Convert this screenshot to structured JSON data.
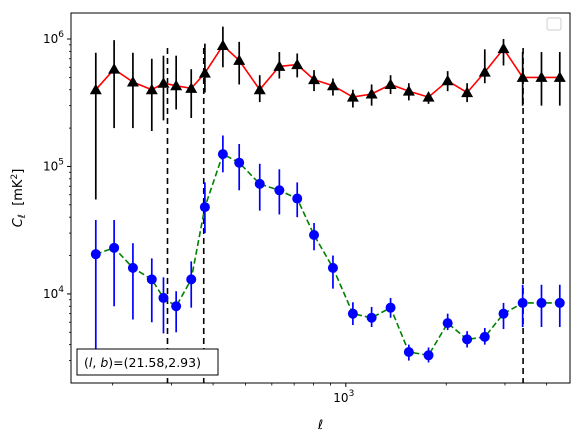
{
  "chart_data": {
    "type": "line",
    "title": "",
    "xlabel": "ℓ",
    "ylabel": "C_ℓ  [mK²]",
    "xscale": "log",
    "yscale": "log",
    "xlim": [
      150,
      4700
    ],
    "ylim": [
      2000,
      1600000
    ],
    "x_ticks": [
      {
        "value": 1000,
        "label": "10",
        "exp": "3"
      }
    ],
    "y_ticks": [
      {
        "value": 10000,
        "label": "10",
        "exp": "4"
      },
      {
        "value": 100000,
        "label": "10",
        "exp": "5"
      },
      {
        "value": 1000000,
        "label": "10",
        "exp": "6"
      }
    ],
    "grid": false,
    "legend": {
      "placement": "top-right",
      "entries": []
    },
    "annotation": {
      "label": "(l, b)",
      "value": "=(21.58,2.93)",
      "placement": "bottom-left"
    },
    "vlines": [
      {
        "x": 292,
        "style": "dashed",
        "color": "#000000"
      },
      {
        "x": 375,
        "style": "dashed",
        "color": "#000000"
      },
      {
        "x": 3400,
        "style": "dashed",
        "color": "#000000"
      }
    ],
    "series": [
      {
        "line_color": "#ff0000",
        "line_style": "solid",
        "marker": "triangle",
        "marker_color": "#000000",
        "error_color": "#000000",
        "x": [
          178,
          202,
          230,
          262,
          284,
          310,
          344,
          378,
          428,
          479,
          552,
          632,
          715,
          803,
          915,
          1050,
          1195,
          1362,
          1545,
          1770,
          2020,
          2310,
          2610,
          2970,
          3390,
          3860,
          4380
        ],
        "y": [
          400000,
          580000,
          460000,
          400000,
          450000,
          430000,
          410000,
          540000,
          890000,
          680000,
          400000,
          610000,
          630000,
          480000,
          430000,
          350000,
          370000,
          440000,
          390000,
          350000,
          470000,
          380000,
          550000,
          840000,
          500000,
          500000,
          500000
        ],
        "err_low": [
          55000,
          200000,
          200000,
          190000,
          230000,
          280000,
          240000,
          380000,
          600000,
          440000,
          320000,
          490000,
          500000,
          390000,
          360000,
          290000,
          300000,
          370000,
          330000,
          310000,
          390000,
          320000,
          450000,
          620000,
          300000,
          300000,
          300000
        ],
        "err_high": [
          780000,
          980000,
          780000,
          700000,
          740000,
          740000,
          580000,
          920000,
          1250000,
          950000,
          520000,
          790000,
          770000,
          570000,
          490000,
          400000,
          440000,
          520000,
          450000,
          380000,
          560000,
          450000,
          830000,
          1000000,
          790000,
          790000,
          790000
        ]
      },
      {
        "line_color": "#008000",
        "line_style": "dashed",
        "marker": "circle",
        "marker_color": "#0000ff",
        "error_color": "#0000ff",
        "x": [
          178,
          202,
          230,
          262,
          284,
          310,
          344,
          378,
          428,
          479,
          552,
          632,
          715,
          803,
          915,
          1050,
          1195,
          1362,
          1545,
          1770,
          2020,
          2310,
          2610,
          2970,
          3390,
          3860,
          4380
        ],
        "y": [
          20500,
          23000,
          16000,
          13000,
          9300,
          8000,
          13000,
          48000,
          125000,
          107000,
          73000,
          65000,
          56000,
          29000,
          16000,
          7000,
          6500,
          7800,
          3500,
          3300,
          5900,
          4400,
          4600,
          7000,
          8500,
          8500,
          8500
        ],
        "err_low": [
          3300,
          8000,
          6300,
          6000,
          4900,
          5000,
          7800,
          30000,
          90000,
          65000,
          45000,
          42000,
          40000,
          22000,
          11000,
          5700,
          5500,
          6500,
          3000,
          2900,
          5200,
          3800,
          4000,
          5300,
          5500,
          5500,
          5500
        ],
        "err_high": [
          38000,
          38000,
          25000,
          19000,
          13500,
          10500,
          18000,
          75000,
          175000,
          150000,
          105000,
          95000,
          75000,
          36000,
          20000,
          8600,
          7900,
          9300,
          4000,
          3800,
          7000,
          5100,
          5400,
          8500,
          11800,
          11800,
          11800
        ]
      }
    ]
  }
}
